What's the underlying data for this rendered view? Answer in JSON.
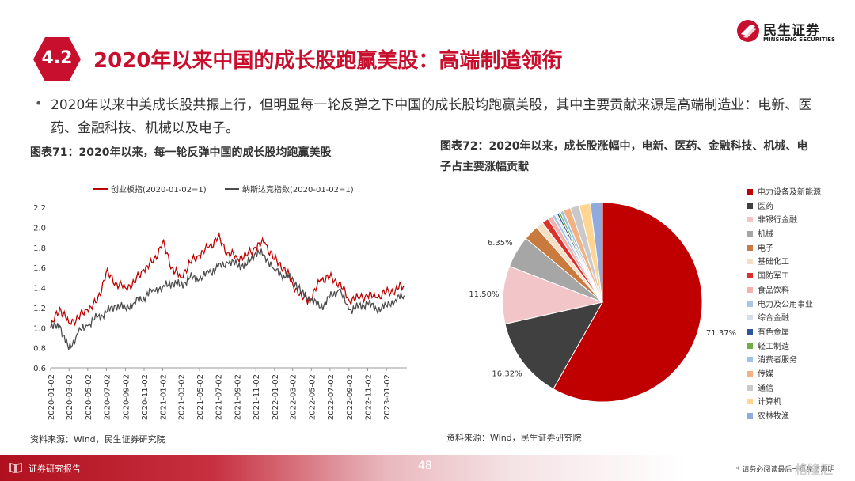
{
  "logo": {
    "name_cn": "民生证券",
    "name_en": "MINSHENG SECURITIES"
  },
  "section": {
    "number": "4.2",
    "title": "2020年以来中国的成长股跑赢美股：高端制造领衔"
  },
  "bullet": "2020年以来中美成长股共振上行，但明显每一轮反弹之下中国的成长股均跑赢美股，其中主要贡献来源是高端制造业：电新、医药、金融科技、机械以及电子。",
  "figure1": {
    "title": "图表71：2020年以来，每一轮反弹中国的成长股均跑赢美股",
    "source": "资料来源：Wind，民生证券研究院"
  },
  "figure2": {
    "title": "图表72：2020年以来，成长股涨幅中，电新、医药、金融科技、机械、电子占主要涨幅贡献",
    "source": "资料来源：Wind，民生证券研究院"
  },
  "footer": {
    "label": "证券研究报告",
    "page": "48",
    "note": "* 请务必阅读最后一页免责声明",
    "watermark": "格隆汇"
  },
  "chart_data": [
    {
      "type": "line",
      "series": [
        {
          "name": "创业板指(2020-01-02=1)",
          "color": "#c00000",
          "x": [
            "2020-01-02",
            "2020-02-01",
            "2020-03-01",
            "2020-04-01",
            "2020-05-01",
            "2020-06-01",
            "2020-07-01",
            "2020-08-01",
            "2020-09-01",
            "2020-10-01",
            "2020-11-01",
            "2020-12-01",
            "2021-01-01",
            "2021-02-01",
            "2021-03-01",
            "2021-04-01",
            "2021-05-01",
            "2021-06-01",
            "2021-07-01",
            "2021-08-01",
            "2021-09-01",
            "2021-10-01",
            "2021-11-01",
            "2021-12-01",
            "2022-01-01",
            "2022-02-01",
            "2022-03-01",
            "2022-04-01",
            "2022-05-01",
            "2022-06-01",
            "2022-07-01",
            "2022-08-01",
            "2022-09-01",
            "2022-10-01",
            "2022-11-01",
            "2022-12-01",
            "2023-01-01",
            "2023-02-01",
            "2023-03-01"
          ],
          "values": [
            1.0,
            1.2,
            1.05,
            1.1,
            1.18,
            1.25,
            1.55,
            1.45,
            1.4,
            1.45,
            1.58,
            1.65,
            1.85,
            1.6,
            1.5,
            1.65,
            1.72,
            1.8,
            1.9,
            1.75,
            1.7,
            1.72,
            1.8,
            1.85,
            1.68,
            1.6,
            1.45,
            1.3,
            1.28,
            1.48,
            1.5,
            1.45,
            1.28,
            1.3,
            1.32,
            1.3,
            1.35,
            1.38,
            1.42
          ]
        },
        {
          "name": "纳斯达克指数(2020-01-02=1)",
          "color": "#4d4d4d",
          "x": [
            "2020-01-02",
            "2020-02-01",
            "2020-03-01",
            "2020-04-01",
            "2020-05-01",
            "2020-06-01",
            "2020-07-01",
            "2020-08-01",
            "2020-09-01",
            "2020-10-01",
            "2020-11-01",
            "2020-12-01",
            "2021-01-01",
            "2021-02-01",
            "2021-03-01",
            "2021-04-01",
            "2021-05-01",
            "2021-06-01",
            "2021-07-01",
            "2021-08-01",
            "2021-09-01",
            "2021-10-01",
            "2021-11-01",
            "2021-12-01",
            "2022-01-01",
            "2022-02-01",
            "2022-03-01",
            "2022-04-01",
            "2022-05-01",
            "2022-06-01",
            "2022-07-01",
            "2022-08-01",
            "2022-09-01",
            "2022-10-01",
            "2022-11-01",
            "2022-12-01",
            "2023-01-01",
            "2023-02-01",
            "2023-03-01"
          ],
          "values": [
            1.0,
            1.02,
            0.78,
            0.95,
            1.02,
            1.1,
            1.15,
            1.22,
            1.2,
            1.25,
            1.3,
            1.38,
            1.4,
            1.45,
            1.42,
            1.5,
            1.48,
            1.55,
            1.6,
            1.65,
            1.63,
            1.62,
            1.75,
            1.72,
            1.58,
            1.52,
            1.5,
            1.35,
            1.28,
            1.2,
            1.3,
            1.38,
            1.18,
            1.2,
            1.25,
            1.18,
            1.22,
            1.28,
            1.32
          ]
        }
      ],
      "ylim": [
        0.6,
        2.2
      ],
      "yticks": [
        "0.6",
        "0.8",
        "1.0",
        "1.2",
        "1.4",
        "1.6",
        "1.8",
        "2.0",
        "2.2"
      ],
      "xticks": [
        "2020-01-02",
        "2020-03-02",
        "2020-05-02",
        "2020-07-02",
        "2020-09-02",
        "2020-11-02",
        "2021-01-02",
        "2021-03-02",
        "2021-05-02",
        "2021-07-02",
        "2021-09-02",
        "2021-11-02",
        "2022-01-02",
        "2022-03-02",
        "2022-05-02",
        "2022-07-02",
        "2022-09-02",
        "2022-11-02",
        "2023-01-02"
      ],
      "legend": "top"
    },
    {
      "type": "pie",
      "categories": [
        "电力设备及新能源",
        "医药",
        "非银行金融",
        "机械",
        "电子",
        "基础化工",
        "国防军工",
        "食品饮料",
        "电力及公用事业",
        "综合金融",
        "有色金属",
        "轻工制造",
        "消费者服务",
        "传媒",
        "通信",
        "计算机",
        "农林牧渔"
      ],
      "values": [
        71.37,
        16.32,
        11.5,
        6.35,
        3.0,
        1.5,
        1.3,
        1.0,
        0.6,
        0.4,
        0.4,
        0.4,
        0.6,
        1.5,
        1.8,
        2.2,
        2.4
      ],
      "labels": [
        "71.37%",
        "16.32%",
        "11.50%",
        "6.35%"
      ],
      "colors": [
        "#c00000",
        "#404040",
        "#f2c6c8",
        "#a6a6a6",
        "#c97b3f",
        "#f4dfc4",
        "#d9312b",
        "#f2b3ae",
        "#a9c6e6",
        "#d6dde8",
        "#2f5597",
        "#70ad47",
        "#9dc3e6",
        "#f4b183",
        "#c9c9c9",
        "#ffd591",
        "#8faadc"
      ],
      "legend": "right"
    }
  ]
}
